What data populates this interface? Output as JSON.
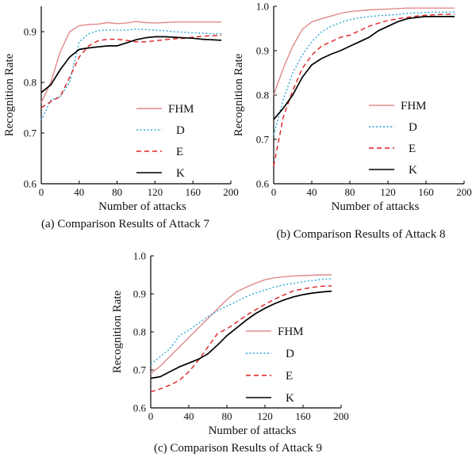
{
  "chart_data": [
    {
      "type": "line",
      "title": "(a) Comparison Results of Attack 7",
      "xlabel": "Number of attacks",
      "ylabel": "Recognition Rate",
      "xlim": [
        0,
        200
      ],
      "ylim": [
        0.6,
        0.95
      ],
      "xticks": [
        0,
        40,
        80,
        120,
        160,
        200
      ],
      "yticks": [
        0.6,
        0.7,
        0.8,
        0.9
      ],
      "ytick_labels": [
        "0.6",
        "0.7",
        "0.8",
        "0.9"
      ],
      "legend": "right",
      "series": [
        {
          "name": "FHM",
          "color": "#e08a8a",
          "style": "solid",
          "x": [
            0,
            10,
            20,
            30,
            40,
            50,
            60,
            70,
            80,
            90,
            100,
            110,
            120,
            130,
            140,
            150,
            160,
            170,
            180,
            190
          ],
          "y": [
            0.76,
            0.8,
            0.86,
            0.9,
            0.912,
            0.914,
            0.915,
            0.918,
            0.916,
            0.917,
            0.92,
            0.918,
            0.917,
            0.918,
            0.919,
            0.919,
            0.919,
            0.919,
            0.919,
            0.919
          ]
        },
        {
          "name": "D",
          "color": "#2aa7d8",
          "style": "dotted",
          "x": [
            0,
            10,
            20,
            30,
            40,
            50,
            60,
            70,
            80,
            90,
            100,
            110,
            120,
            130,
            140,
            150,
            160,
            170,
            180,
            190
          ],
          "y": [
            0.725,
            0.765,
            0.772,
            0.8,
            0.88,
            0.896,
            0.902,
            0.903,
            0.903,
            0.903,
            0.905,
            0.904,
            0.903,
            0.902,
            0.9,
            0.899,
            0.898,
            0.897,
            0.896,
            0.896
          ]
        },
        {
          "name": "E",
          "color": "#e02020",
          "style": "dashed",
          "x": [
            0,
            10,
            20,
            30,
            40,
            50,
            60,
            70,
            80,
            90,
            100,
            110,
            120,
            130,
            140,
            150,
            160,
            170,
            180,
            190
          ],
          "y": [
            0.75,
            0.762,
            0.772,
            0.81,
            0.85,
            0.872,
            0.882,
            0.885,
            0.885,
            0.883,
            0.88,
            0.88,
            0.882,
            0.884,
            0.886,
            0.887,
            0.889,
            0.891,
            0.892,
            0.893
          ]
        },
        {
          "name": "K",
          "color": "#000000",
          "style": "solid",
          "x": [
            0,
            10,
            20,
            30,
            40,
            50,
            60,
            70,
            80,
            90,
            100,
            110,
            120,
            130,
            140,
            150,
            160,
            170,
            180,
            190
          ],
          "y": [
            0.78,
            0.795,
            0.825,
            0.85,
            0.865,
            0.868,
            0.87,
            0.872,
            0.872,
            0.878,
            0.884,
            0.888,
            0.89,
            0.89,
            0.889,
            0.888,
            0.887,
            0.885,
            0.884,
            0.883
          ]
        }
      ]
    },
    {
      "type": "line",
      "title": "(b) Comparison Results of Attack 8",
      "xlabel": "Number of attacks",
      "ylabel": "Recognition Rate",
      "xlim": [
        0,
        200
      ],
      "ylim": [
        0.6,
        1.0
      ],
      "xticks": [
        0,
        40,
        80,
        120,
        160,
        200
      ],
      "yticks": [
        0.6,
        0.7,
        0.8,
        0.9,
        1.0
      ],
      "ytick_labels": [
        "0.6",
        "0.7",
        "0.8",
        "0.9",
        "1.0"
      ],
      "legend": "right",
      "series": [
        {
          "name": "FHM",
          "color": "#e08a8a",
          "style": "solid",
          "x": [
            0,
            10,
            20,
            30,
            40,
            50,
            60,
            70,
            80,
            90,
            100,
            110,
            120,
            130,
            140,
            150,
            160,
            170,
            180,
            190
          ],
          "y": [
            0.8,
            0.86,
            0.91,
            0.948,
            0.965,
            0.972,
            0.978,
            0.984,
            0.988,
            0.99,
            0.992,
            0.993,
            0.994,
            0.995,
            0.996,
            0.996,
            0.996,
            0.996,
            0.996,
            0.996
          ]
        },
        {
          "name": "D",
          "color": "#2aa7d8",
          "style": "dotted",
          "x": [
            0,
            10,
            20,
            30,
            40,
            50,
            60,
            70,
            80,
            90,
            100,
            110,
            120,
            130,
            140,
            150,
            160,
            170,
            180,
            190
          ],
          "y": [
            0.71,
            0.79,
            0.85,
            0.89,
            0.92,
            0.942,
            0.955,
            0.963,
            0.97,
            0.974,
            0.977,
            0.979,
            0.98,
            0.982,
            0.984,
            0.985,
            0.986,
            0.987,
            0.987,
            0.987
          ]
        },
        {
          "name": "E",
          "color": "#e02020",
          "style": "dashed",
          "x": [
            0,
            10,
            20,
            30,
            40,
            50,
            60,
            70,
            80,
            90,
            100,
            110,
            120,
            130,
            140,
            150,
            160,
            170,
            180,
            190
          ],
          "y": [
            0.64,
            0.75,
            0.81,
            0.86,
            0.89,
            0.91,
            0.92,
            0.93,
            0.935,
            0.945,
            0.955,
            0.962,
            0.968,
            0.972,
            0.975,
            0.978,
            0.98,
            0.981,
            0.982,
            0.982
          ]
        },
        {
          "name": "K",
          "color": "#000000",
          "style": "solid",
          "x": [
            0,
            10,
            20,
            30,
            40,
            50,
            60,
            70,
            80,
            90,
            100,
            110,
            120,
            130,
            140,
            150,
            160,
            170,
            180,
            190
          ],
          "y": [
            0.745,
            0.77,
            0.8,
            0.84,
            0.868,
            0.882,
            0.892,
            0.9,
            0.91,
            0.92,
            0.93,
            0.945,
            0.955,
            0.965,
            0.972,
            0.975,
            0.977,
            0.977,
            0.977,
            0.977
          ]
        }
      ]
    },
    {
      "type": "line",
      "title": "(c) Comparison Results of Attack 9",
      "xlabel": "Number of attacks",
      "ylabel": "Recognition Rate",
      "xlim": [
        0,
        200
      ],
      "ylim": [
        0.6,
        1.0
      ],
      "xticks": [
        0,
        40,
        80,
        120,
        160,
        200
      ],
      "yticks": [
        0.6,
        0.7,
        0.8,
        0.9,
        1.0
      ],
      "ytick_labels": [
        "0.6",
        "0.7",
        "0.8",
        "0.9",
        "1.0"
      ],
      "legend": "right",
      "series": [
        {
          "name": "FHM",
          "color": "#e08a8a",
          "style": "solid",
          "x": [
            0,
            10,
            20,
            30,
            40,
            50,
            60,
            70,
            80,
            90,
            100,
            110,
            120,
            130,
            140,
            150,
            160,
            170,
            180,
            190
          ],
          "y": [
            0.69,
            0.71,
            0.735,
            0.76,
            0.785,
            0.81,
            0.835,
            0.86,
            0.885,
            0.905,
            0.917,
            0.928,
            0.937,
            0.942,
            0.945,
            0.947,
            0.948,
            0.949,
            0.95,
            0.95
          ]
        },
        {
          "name": "D",
          "color": "#2aa7d8",
          "style": "dotted",
          "x": [
            0,
            10,
            20,
            30,
            40,
            50,
            60,
            70,
            80,
            90,
            100,
            110,
            120,
            130,
            140,
            150,
            160,
            170,
            180,
            190
          ],
          "y": [
            0.715,
            0.735,
            0.755,
            0.79,
            0.805,
            0.822,
            0.84,
            0.855,
            0.868,
            0.88,
            0.892,
            0.902,
            0.91,
            0.918,
            0.924,
            0.928,
            0.932,
            0.935,
            0.938,
            0.94
          ]
        },
        {
          "name": "E",
          "color": "#e02020",
          "style": "dashed",
          "x": [
            0,
            10,
            20,
            30,
            40,
            50,
            60,
            70,
            80,
            90,
            100,
            110,
            120,
            130,
            140,
            150,
            160,
            170,
            180,
            190
          ],
          "y": [
            0.642,
            0.65,
            0.66,
            0.672,
            0.695,
            0.725,
            0.76,
            0.795,
            0.808,
            0.825,
            0.843,
            0.858,
            0.872,
            0.886,
            0.897,
            0.908,
            0.913,
            0.917,
            0.92,
            0.921
          ]
        },
        {
          "name": "K",
          "color": "#000000",
          "style": "solid",
          "x": [
            0,
            10,
            20,
            30,
            40,
            50,
            60,
            70,
            80,
            90,
            100,
            110,
            120,
            130,
            140,
            150,
            160,
            170,
            180,
            190
          ],
          "y": [
            0.678,
            0.682,
            0.695,
            0.708,
            0.718,
            0.728,
            0.742,
            0.765,
            0.79,
            0.81,
            0.83,
            0.848,
            0.862,
            0.874,
            0.884,
            0.892,
            0.898,
            0.902,
            0.905,
            0.907
          ]
        }
      ]
    }
  ]
}
